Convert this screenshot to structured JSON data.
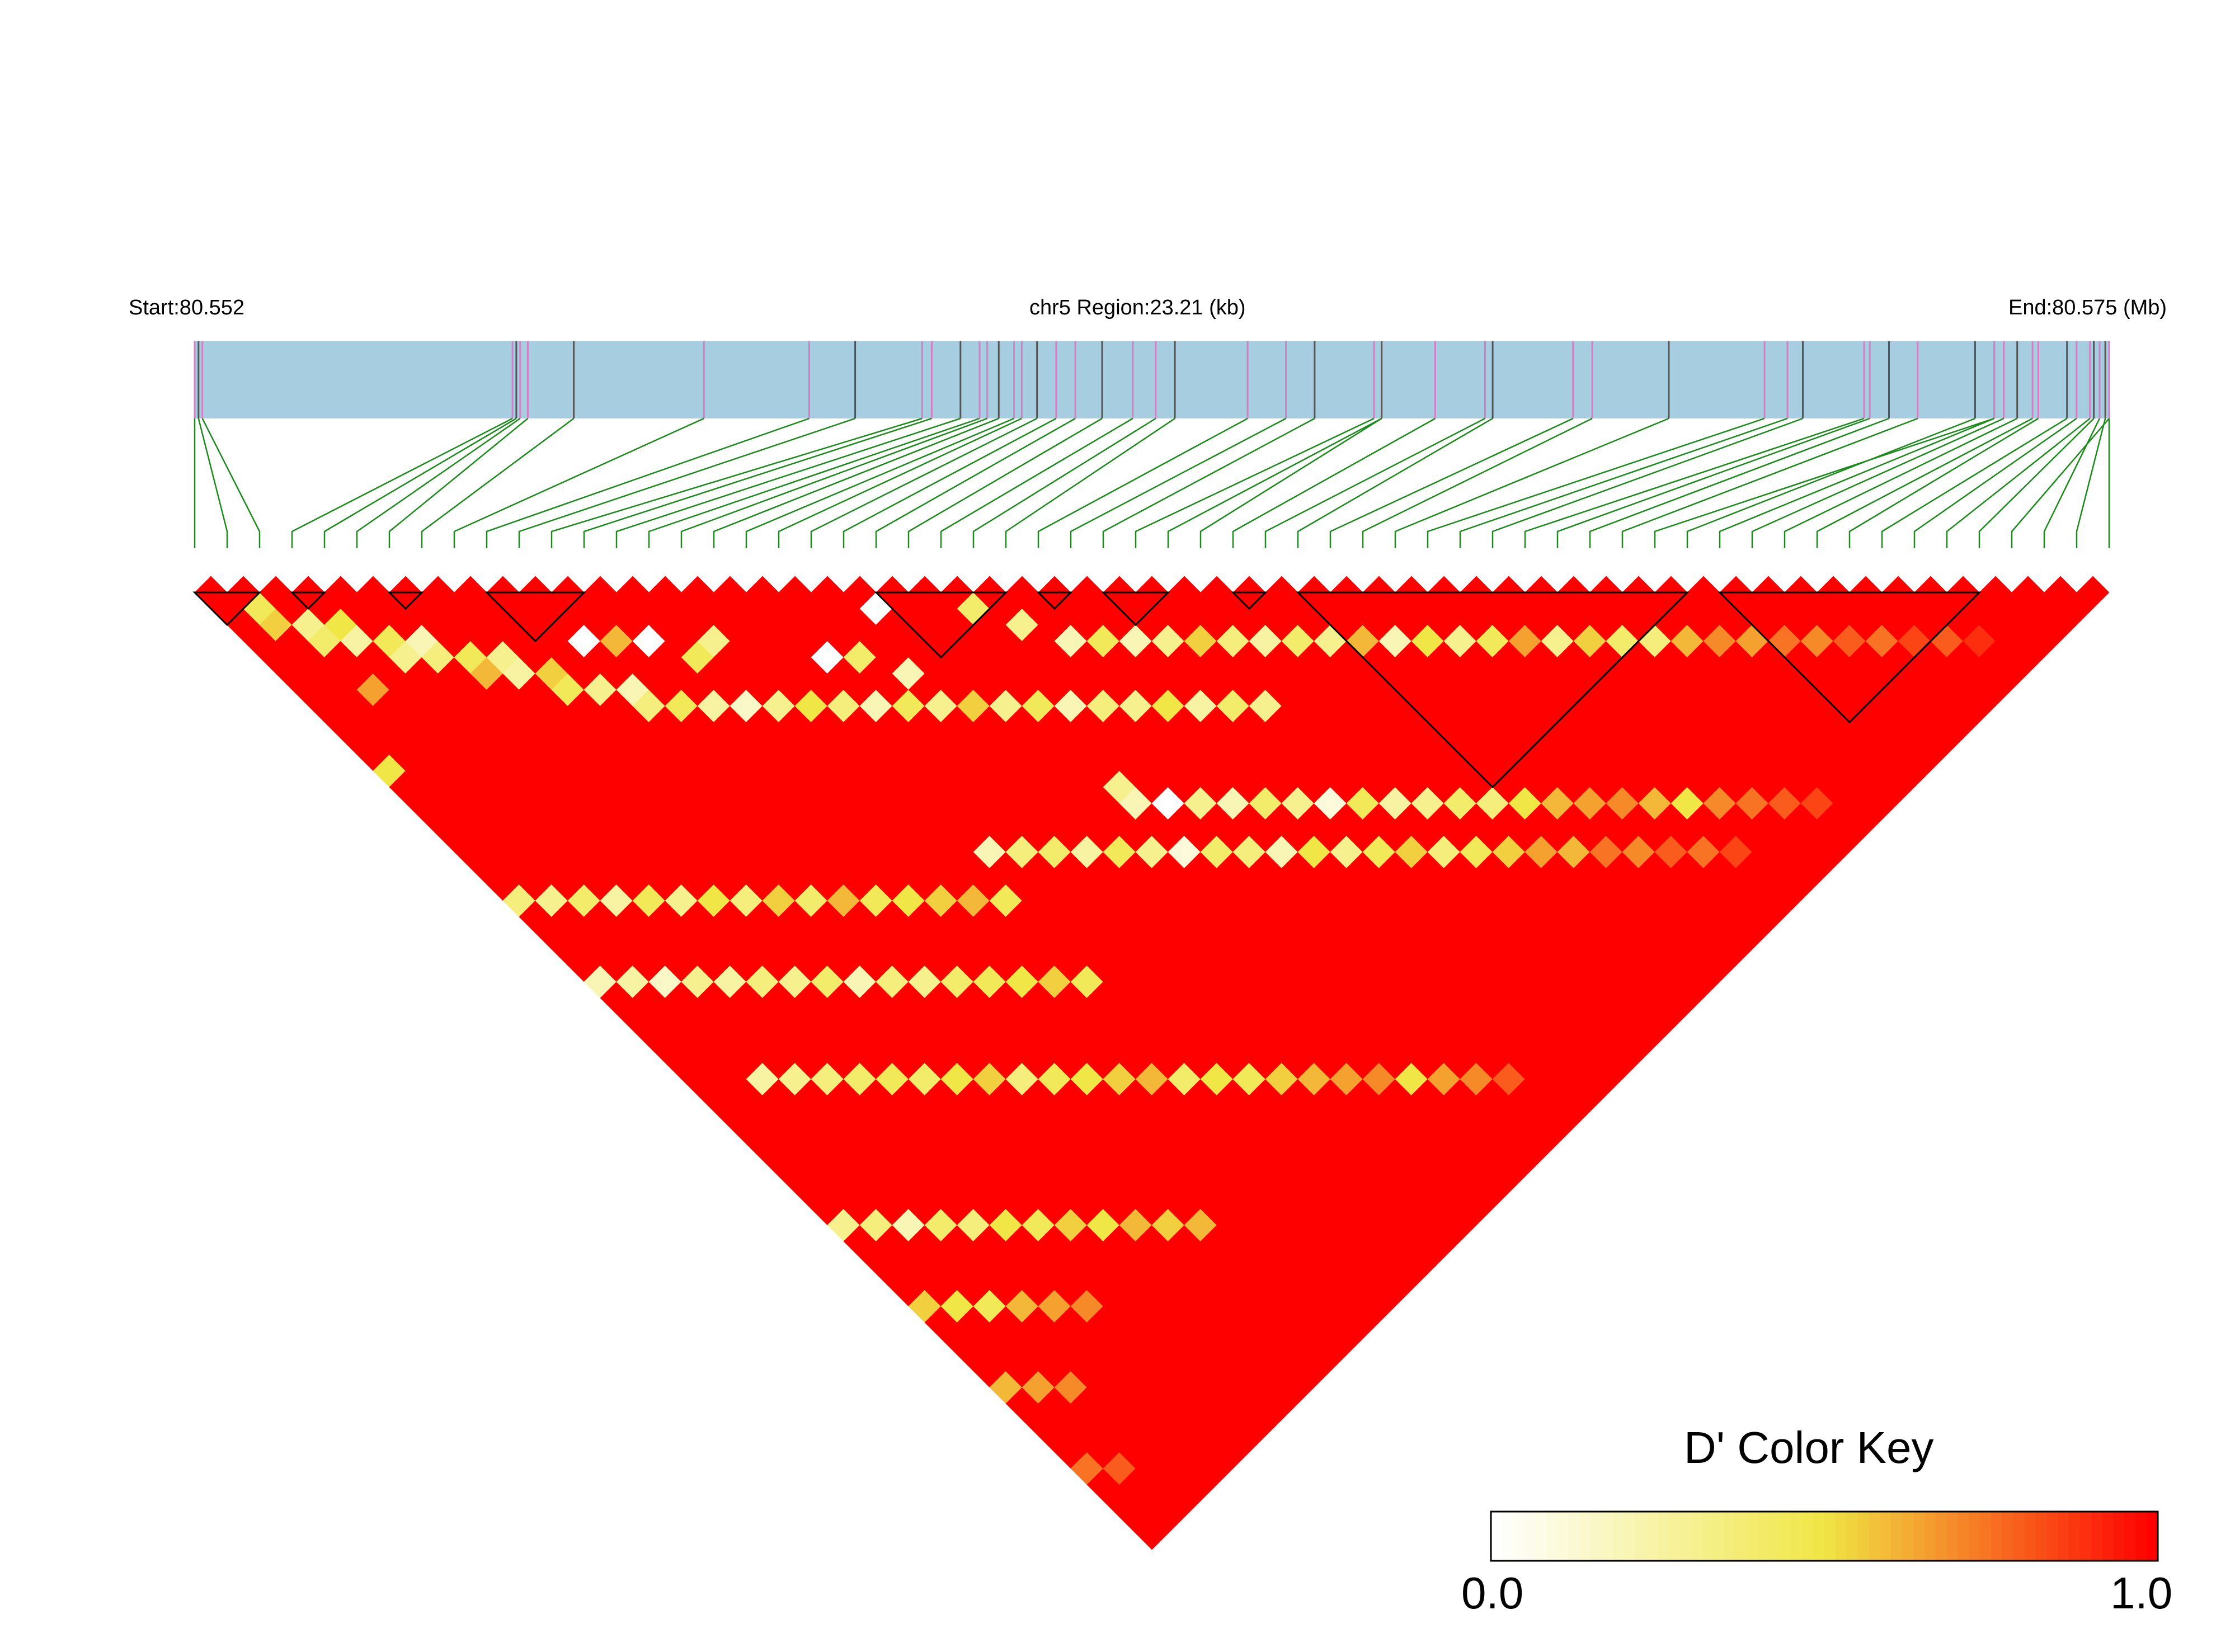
{
  "header": {
    "start_label": "Start:80.552",
    "region_label": "chr5 Region:23.21 (kb)",
    "end_label": "End:80.575 (Mb)"
  },
  "colors": {
    "track_fill": "#a6cde0",
    "snp_tick_pink": "#d47fc4",
    "snp_tick_dark": "#555555",
    "connector": "#1a8a1a",
    "ld_high": "#ff0000",
    "ld_mid": "#f0e645",
    "ld_low": "#ffffff"
  },
  "legend": {
    "title": "D' Color Key",
    "min_label": "0.0",
    "max_label": "1.0"
  },
  "chart_data": {
    "type": "heatmap",
    "description_type": "LD triangle",
    "chromosome": "chr5",
    "region_start_mb": 80.552,
    "region_end_mb": 80.575,
    "region_size_kb": 23.21,
    "metric": "D'",
    "value_range": [
      0.0,
      1.0
    ],
    "snp_count": 60,
    "snp_positions_fraction": [
      0.0,
      0.002,
      0.004,
      0.166,
      0.168,
      0.17,
      0.174,
      0.198,
      0.266,
      0.321,
      0.345,
      0.38,
      0.385,
      0.4,
      0.41,
      0.414,
      0.42,
      0.428,
      0.432,
      0.44,
      0.45,
      0.46,
      0.474,
      0.49,
      0.502,
      0.512,
      0.55,
      0.57,
      0.585,
      0.616,
      0.62,
      0.62,
      0.648,
      0.674,
      0.678,
      0.72,
      0.73,
      0.77,
      0.82,
      0.832,
      0.84,
      0.872,
      0.875,
      0.885,
      0.9,
      0.94,
      0.93,
      0.94,
      0.945,
      0.952,
      0.96,
      0.963,
      0.978,
      0.983,
      0.99,
      0.992,
      1.0,
      0.995,
      0.998,
      1.0
    ],
    "ld_blocks_snp_ranges": [
      [
        0,
        1
      ],
      [
        3,
        3
      ],
      [
        6,
        6
      ],
      [
        9,
        11
      ],
      [
        21,
        24
      ],
      [
        26,
        26
      ],
      [
        28,
        29
      ],
      [
        32,
        32
      ],
      [
        34,
        45
      ],
      [
        47,
        54
      ]
    ],
    "light_cells": [
      [
        1,
        3,
        0.45
      ],
      [
        1,
        4,
        0.55
      ],
      [
        2,
        5,
        0.3
      ],
      [
        2,
        6,
        0.4
      ],
      [
        3,
        6,
        0.5
      ],
      [
        3,
        7,
        0.25
      ],
      [
        4,
        8,
        0.45
      ],
      [
        4,
        9,
        0.3
      ],
      [
        5,
        9,
        0.2
      ],
      [
        5,
        10,
        0.35
      ],
      [
        6,
        11,
        0.45
      ],
      [
        6,
        12,
        0.6
      ],
      [
        7,
        12,
        0.3
      ],
      [
        7,
        13,
        0.25
      ],
      [
        8,
        14,
        0.55
      ],
      [
        8,
        15,
        0.45
      ],
      [
        9,
        16,
        0.3
      ],
      [
        10,
        17,
        0.2
      ],
      [
        10,
        18,
        0.35
      ],
      [
        11,
        19,
        0.45
      ],
      [
        12,
        20,
        0.25
      ],
      [
        13,
        21,
        0.15
      ],
      [
        14,
        22,
        0.3
      ],
      [
        15,
        23,
        0.5
      ],
      [
        16,
        24,
        0.35
      ],
      [
        17,
        25,
        0.2
      ],
      [
        18,
        26,
        0.45
      ],
      [
        19,
        27,
        0.3
      ],
      [
        20,
        28,
        0.55
      ],
      [
        21,
        29,
        0.3
      ],
      [
        22,
        30,
        0.45
      ],
      [
        23,
        31,
        0.2
      ],
      [
        24,
        32,
        0.35
      ],
      [
        25,
        33,
        0.3
      ],
      [
        26,
        34,
        0.5
      ],
      [
        27,
        35,
        0.25
      ],
      [
        28,
        36,
        0.4
      ],
      [
        29,
        37,
        0.3
      ],
      [
        0,
        12,
        0.5
      ],
      [
        2,
        9,
        0.65
      ],
      [
        10,
        14,
        0.0
      ],
      [
        11,
        15,
        0.6
      ],
      [
        12,
        16,
        0.0
      ],
      [
        13,
        18,
        0.45
      ],
      [
        14,
        18,
        0.3
      ],
      [
        17,
        22,
        0.0
      ],
      [
        18,
        23,
        0.4
      ],
      [
        19,
        25,
        0.2
      ],
      [
        20,
        22,
        0.0
      ],
      [
        23,
        25,
        0.4
      ],
      [
        24,
        27,
        0.3
      ],
      [
        25,
        29,
        0.2
      ],
      [
        26,
        30,
        0.45
      ],
      [
        27,
        31,
        0.2
      ],
      [
        28,
        32,
        0.3
      ],
      [
        29,
        33,
        0.55
      ],
      [
        30,
        34,
        0.35
      ],
      [
        31,
        35,
        0.25
      ],
      [
        32,
        36,
        0.4
      ],
      [
        33,
        37,
        0.3
      ],
      [
        34,
        38,
        0.6
      ],
      [
        35,
        39,
        0.2
      ],
      [
        36,
        40,
        0.5
      ],
      [
        37,
        41,
        0.3
      ],
      [
        38,
        42,
        0.45
      ],
      [
        39,
        43,
        0.65
      ],
      [
        40,
        44,
        0.3
      ],
      [
        41,
        45,
        0.55
      ],
      [
        42,
        46,
        0.4
      ],
      [
        43,
        47,
        0.35
      ],
      [
        44,
        48,
        0.6
      ],
      [
        45,
        49,
        0.7
      ],
      [
        46,
        50,
        0.65
      ],
      [
        47,
        51,
        0.75
      ],
      [
        48,
        52,
        0.7
      ],
      [
        49,
        53,
        0.8
      ],
      [
        50,
        54,
        0.75
      ],
      [
        51,
        55,
        0.85
      ],
      [
        52,
        56,
        0.8
      ],
      [
        53,
        57,
        0.9
      ],
      [
        22,
        35,
        0.3
      ],
      [
        22,
        36,
        0.2
      ],
      [
        23,
        37,
        0.0
      ],
      [
        24,
        38,
        0.3
      ],
      [
        25,
        39,
        0.2
      ],
      [
        26,
        40,
        0.4
      ],
      [
        27,
        41,
        0.3
      ],
      [
        28,
        42,
        0.1
      ],
      [
        29,
        43,
        0.45
      ],
      [
        30,
        44,
        0.25
      ],
      [
        31,
        45,
        0.3
      ],
      [
        32,
        46,
        0.4
      ],
      [
        33,
        47,
        0.35
      ],
      [
        34,
        48,
        0.5
      ],
      [
        35,
        49,
        0.6
      ],
      [
        36,
        50,
        0.65
      ],
      [
        37,
        51,
        0.7
      ],
      [
        38,
        52,
        0.6
      ],
      [
        39,
        53,
        0.5
      ],
      [
        40,
        54,
        0.7
      ],
      [
        41,
        55,
        0.75
      ],
      [
        42,
        56,
        0.8
      ],
      [
        43,
        57,
        0.85
      ],
      [
        16,
        33,
        0.2
      ],
      [
        17,
        34,
        0.35
      ],
      [
        18,
        35,
        0.4
      ],
      [
        19,
        36,
        0.25
      ],
      [
        20,
        37,
        0.45
      ],
      [
        21,
        38,
        0.3
      ],
      [
        22,
        39,
        0.1
      ],
      [
        23,
        40,
        0.4
      ],
      [
        24,
        41,
        0.35
      ],
      [
        25,
        42,
        0.2
      ],
      [
        26,
        43,
        0.5
      ],
      [
        27,
        44,
        0.3
      ],
      [
        28,
        45,
        0.45
      ],
      [
        29,
        46,
        0.55
      ],
      [
        30,
        47,
        0.35
      ],
      [
        31,
        48,
        0.45
      ],
      [
        32,
        49,
        0.55
      ],
      [
        33,
        50,
        0.65
      ],
      [
        34,
        51,
        0.6
      ],
      [
        35,
        52,
        0.75
      ],
      [
        36,
        53,
        0.7
      ],
      [
        37,
        54,
        0.8
      ],
      [
        38,
        55,
        0.75
      ],
      [
        39,
        56,
        0.85
      ],
      [
        2,
        33,
        0.25
      ],
      [
        3,
        34,
        0.3
      ],
      [
        4,
        35,
        0.35
      ],
      [
        5,
        36,
        0.4
      ],
      [
        6,
        37,
        0.45
      ],
      [
        7,
        38,
        0.4
      ],
      [
        8,
        39,
        0.5
      ],
      [
        9,
        40,
        0.55
      ],
      [
        10,
        41,
        0.35
      ],
      [
        11,
        42,
        0.45
      ],
      [
        12,
        43,
        0.5
      ],
      [
        13,
        44,
        0.55
      ],
      [
        14,
        45,
        0.6
      ],
      [
        15,
        46,
        0.4
      ],
      [
        16,
        47,
        0.5
      ],
      [
        17,
        48,
        0.45
      ],
      [
        18,
        49,
        0.55
      ],
      [
        19,
        50,
        0.6
      ],
      [
        20,
        51,
        0.65
      ],
      [
        21,
        52,
        0.7
      ],
      [
        22,
        53,
        0.5
      ],
      [
        23,
        54,
        0.65
      ],
      [
        24,
        55,
        0.7
      ],
      [
        25,
        56,
        0.8
      ],
      [
        0,
        25,
        0.2
      ],
      [
        1,
        26,
        0.25
      ],
      [
        2,
        27,
        0.15
      ],
      [
        3,
        28,
        0.3
      ],
      [
        4,
        29,
        0.25
      ],
      [
        5,
        30,
        0.35
      ],
      [
        6,
        31,
        0.3
      ],
      [
        7,
        32,
        0.4
      ],
      [
        8,
        33,
        0.2
      ],
      [
        9,
        34,
        0.35
      ],
      [
        10,
        35,
        0.3
      ],
      [
        11,
        36,
        0.4
      ],
      [
        12,
        37,
        0.45
      ],
      [
        13,
        38,
        0.5
      ],
      [
        14,
        39,
        0.55
      ],
      [
        15,
        40,
        0.45
      ],
      [
        0,
        20,
        0.35
      ],
      [
        1,
        21,
        0.3
      ],
      [
        2,
        22,
        0.4
      ],
      [
        3,
        23,
        0.25
      ],
      [
        4,
        24,
        0.45
      ],
      [
        5,
        25,
        0.3
      ],
      [
        6,
        26,
        0.5
      ],
      [
        7,
        27,
        0.35
      ],
      [
        8,
        28,
        0.55
      ],
      [
        9,
        29,
        0.4
      ],
      [
        10,
        30,
        0.6
      ],
      [
        11,
        31,
        0.45
      ],
      [
        12,
        32,
        0.5
      ],
      [
        13,
        33,
        0.55
      ],
      [
        14,
        34,
        0.6
      ],
      [
        15,
        35,
        0.45
      ],
      [
        0,
        40,
        0.3
      ],
      [
        1,
        41,
        0.35
      ],
      [
        2,
        42,
        0.2
      ],
      [
        3,
        43,
        0.4
      ],
      [
        4,
        44,
        0.35
      ],
      [
        5,
        45,
        0.5
      ],
      [
        6,
        46,
        0.45
      ],
      [
        7,
        47,
        0.55
      ],
      [
        8,
        48,
        0.5
      ],
      [
        9,
        49,
        0.6
      ],
      [
        10,
        50,
        0.55
      ],
      [
        11,
        51,
        0.6
      ],
      [
        0,
        45,
        0.55
      ],
      [
        1,
        46,
        0.5
      ],
      [
        2,
        47,
        0.45
      ],
      [
        3,
        48,
        0.6
      ],
      [
        4,
        49,
        0.65
      ],
      [
        5,
        50,
        0.7
      ],
      [
        0,
        50,
        0.6
      ],
      [
        1,
        51,
        0.65
      ],
      [
        2,
        52,
        0.7
      ],
      [
        0,
        55,
        0.75
      ],
      [
        1,
        56,
        0.8
      ]
    ]
  }
}
